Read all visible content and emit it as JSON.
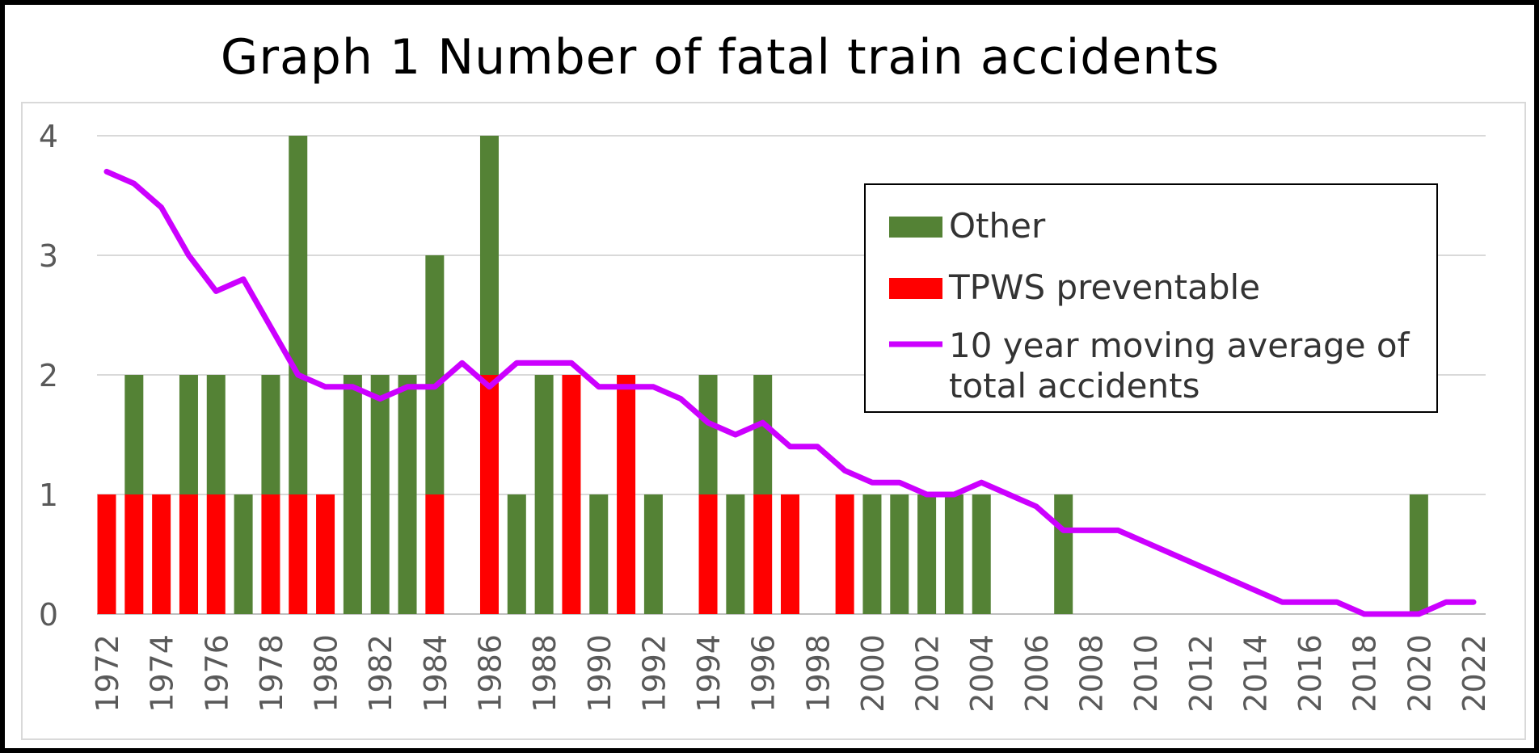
{
  "chart_data": {
    "type": "bar",
    "title": "Graph 1  Number of fatal train accidents",
    "xlabel": "",
    "ylabel": "",
    "ylim": [
      0,
      4
    ],
    "yticks": [
      0,
      1,
      2,
      3,
      4
    ],
    "x": [
      1972,
      1973,
      1974,
      1975,
      1976,
      1977,
      1978,
      1979,
      1980,
      1981,
      1982,
      1983,
      1984,
      1985,
      1986,
      1987,
      1988,
      1989,
      1990,
      1991,
      1992,
      1993,
      1994,
      1995,
      1996,
      1997,
      1998,
      1999,
      2000,
      2001,
      2002,
      2003,
      2004,
      2005,
      2006,
      2007,
      2008,
      2009,
      2010,
      2011,
      2012,
      2013,
      2014,
      2015,
      2016,
      2017,
      2018,
      2019,
      2020,
      2021,
      2022
    ],
    "xtick_labels": [
      "1972",
      "1974",
      "1976",
      "1978",
      "1980",
      "1982",
      "1984",
      "1986",
      "1988",
      "1990",
      "1992",
      "1994",
      "1996",
      "1998",
      "2000",
      "2002",
      "2004",
      "2006",
      "2008",
      "2010",
      "2012",
      "2014",
      "2016",
      "2018",
      "2020",
      "2022"
    ],
    "series": [
      {
        "name": "TPWS preventable",
        "kind": "stacked-bar",
        "color": "#ff0000",
        "values": [
          1,
          1,
          1,
          1,
          1,
          0,
          1,
          1,
          1,
          0,
          0,
          0,
          1,
          0,
          2,
          0,
          0,
          2,
          0,
          2,
          0,
          0,
          1,
          0,
          1,
          1,
          0,
          1,
          0,
          0,
          0,
          0,
          0,
          0,
          0,
          0,
          0,
          0,
          0,
          0,
          0,
          0,
          0,
          0,
          0,
          0,
          0,
          0,
          0,
          0,
          0
        ]
      },
      {
        "name": "Other",
        "kind": "stacked-bar",
        "color": "#548235",
        "values": [
          0,
          1,
          0,
          1,
          1,
          1,
          1,
          3,
          0,
          2,
          2,
          2,
          2,
          0,
          2,
          1,
          2,
          0,
          1,
          0,
          1,
          0,
          1,
          1,
          1,
          0,
          0,
          0,
          1,
          1,
          1,
          1,
          1,
          0,
          0,
          1,
          0,
          0,
          0,
          0,
          0,
          0,
          0,
          0,
          0,
          0,
          0,
          0,
          1,
          0,
          0
        ]
      },
      {
        "name": "10 year moving average of total accidents",
        "kind": "line",
        "color": "#cc00ff",
        "values": [
          3.7,
          3.6,
          3.4,
          3.0,
          2.7,
          2.8,
          2.4,
          2.0,
          1.9,
          1.9,
          1.8,
          1.9,
          1.9,
          2.1,
          1.9,
          2.1,
          2.1,
          2.1,
          1.9,
          1.9,
          1.9,
          1.8,
          1.6,
          1.5,
          1.6,
          1.4,
          1.4,
          1.2,
          1.1,
          1.1,
          1.0,
          1.0,
          1.1,
          1.0,
          0.9,
          0.7,
          0.7,
          0.7,
          0.6,
          0.5,
          0.4,
          0.3,
          0.2,
          0.1,
          0.1,
          0.1,
          0.0,
          0.0,
          0.0,
          0.1,
          0.1
        ]
      }
    ],
    "legend": {
      "placement": "top-right",
      "entries": [
        "Other",
        "TPWS preventable",
        "10 year moving average of",
        "total accidents"
      ]
    },
    "grid": true,
    "gridline_color": "#d9d9d9",
    "axis_label_color": "#595959"
  }
}
